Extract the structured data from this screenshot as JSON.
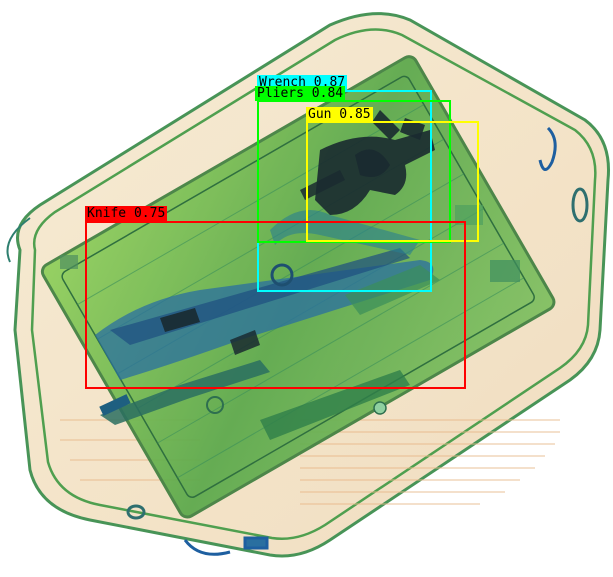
{
  "detections": [
    {
      "label": "Wrench 0.87",
      "color": "#00ffff",
      "text_color": "#000000"
    },
    {
      "label": "Pliers 0.84",
      "color": "#00ff00",
      "text_color": "#000000"
    },
    {
      "label": "Gun 0.85",
      "color": "#ffff00",
      "text_color": "#000000"
    },
    {
      "label": "Knife 0.75",
      "color": "#ff0000",
      "text_color": "#000000"
    }
  ],
  "colors": {
    "bag_outline": "#2e8b57",
    "bag_fill": "#f3e4c8",
    "tray_green": "#6fb84a",
    "dense_blue": "#2a6fa0",
    "metal_dark": "#1a2a30",
    "handle_blue": "#1e5fa0"
  }
}
